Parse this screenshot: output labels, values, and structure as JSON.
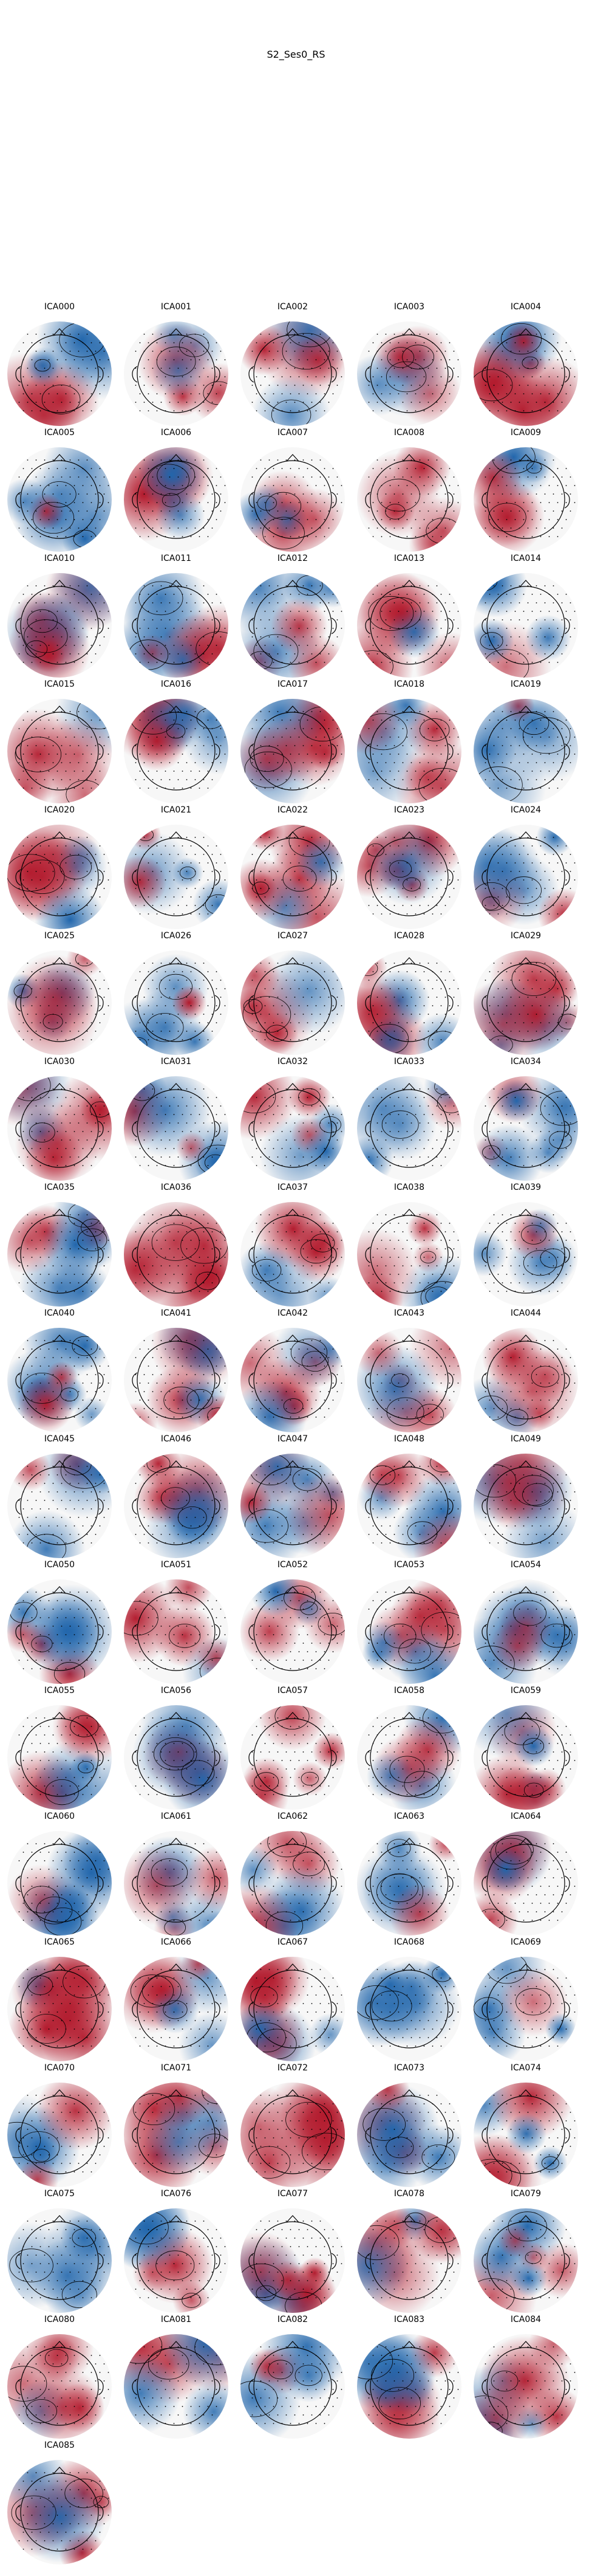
{
  "figure": {
    "title": "S2_Ses0_RS"
  },
  "components": [
    {
      "label": "ICA000"
    },
    {
      "label": "ICA001"
    },
    {
      "label": "ICA002"
    },
    {
      "label": "ICA003"
    },
    {
      "label": "ICA004"
    },
    {
      "label": "ICA005"
    },
    {
      "label": "ICA006"
    },
    {
      "label": "ICA007"
    },
    {
      "label": "ICA008"
    },
    {
      "label": "ICA009"
    },
    {
      "label": "ICA010"
    },
    {
      "label": "ICA011"
    },
    {
      "label": "ICA012"
    },
    {
      "label": "ICA013"
    },
    {
      "label": "ICA014"
    },
    {
      "label": "ICA015"
    },
    {
      "label": "ICA016"
    },
    {
      "label": "ICA017"
    },
    {
      "label": "ICA018"
    },
    {
      "label": "ICA019"
    },
    {
      "label": "ICA020"
    },
    {
      "label": "ICA021"
    },
    {
      "label": "ICA022"
    },
    {
      "label": "ICA023"
    },
    {
      "label": "ICA024"
    },
    {
      "label": "ICA025"
    },
    {
      "label": "ICA026"
    },
    {
      "label": "ICA027"
    },
    {
      "label": "ICA028"
    },
    {
      "label": "ICA029"
    },
    {
      "label": "ICA030"
    },
    {
      "label": "ICA031"
    },
    {
      "label": "ICA032"
    },
    {
      "label": "ICA033"
    },
    {
      "label": "ICA034"
    },
    {
      "label": "ICA035"
    },
    {
      "label": "ICA036"
    },
    {
      "label": "ICA037"
    },
    {
      "label": "ICA038"
    },
    {
      "label": "ICA039"
    },
    {
      "label": "ICA040"
    },
    {
      "label": "ICA041"
    },
    {
      "label": "ICA042"
    },
    {
      "label": "ICA043"
    },
    {
      "label": "ICA044"
    },
    {
      "label": "ICA045"
    },
    {
      "label": "ICA046"
    },
    {
      "label": "ICA047"
    },
    {
      "label": "ICA048"
    },
    {
      "label": "ICA049"
    },
    {
      "label": "ICA050"
    },
    {
      "label": "ICA051"
    },
    {
      "label": "ICA052"
    },
    {
      "label": "ICA053"
    },
    {
      "label": "ICA054"
    },
    {
      "label": "ICA055"
    },
    {
      "label": "ICA056"
    },
    {
      "label": "ICA057"
    },
    {
      "label": "ICA058"
    },
    {
      "label": "ICA059"
    },
    {
      "label": "ICA060"
    },
    {
      "label": "ICA061"
    },
    {
      "label": "ICA062"
    },
    {
      "label": "ICA063"
    },
    {
      "label": "ICA064"
    },
    {
      "label": "ICA065"
    },
    {
      "label": "ICA066"
    },
    {
      "label": "ICA067"
    },
    {
      "label": "ICA068"
    },
    {
      "label": "ICA069"
    },
    {
      "label": "ICA070"
    },
    {
      "label": "ICA071"
    },
    {
      "label": "ICA072"
    },
    {
      "label": "ICA073"
    },
    {
      "label": "ICA074"
    },
    {
      "label": "ICA075"
    },
    {
      "label": "ICA076"
    },
    {
      "label": "ICA077"
    },
    {
      "label": "ICA078"
    },
    {
      "label": "ICA079"
    },
    {
      "label": "ICA080"
    },
    {
      "label": "ICA081"
    },
    {
      "label": "ICA082"
    },
    {
      "label": "ICA083"
    },
    {
      "label": "ICA084"
    },
    {
      "label": "ICA085"
    }
  ],
  "colors": {
    "positive": "#b2182b",
    "negative": "#2166ac",
    "neutral": "#f7f7f7",
    "outline": "#000000"
  }
}
